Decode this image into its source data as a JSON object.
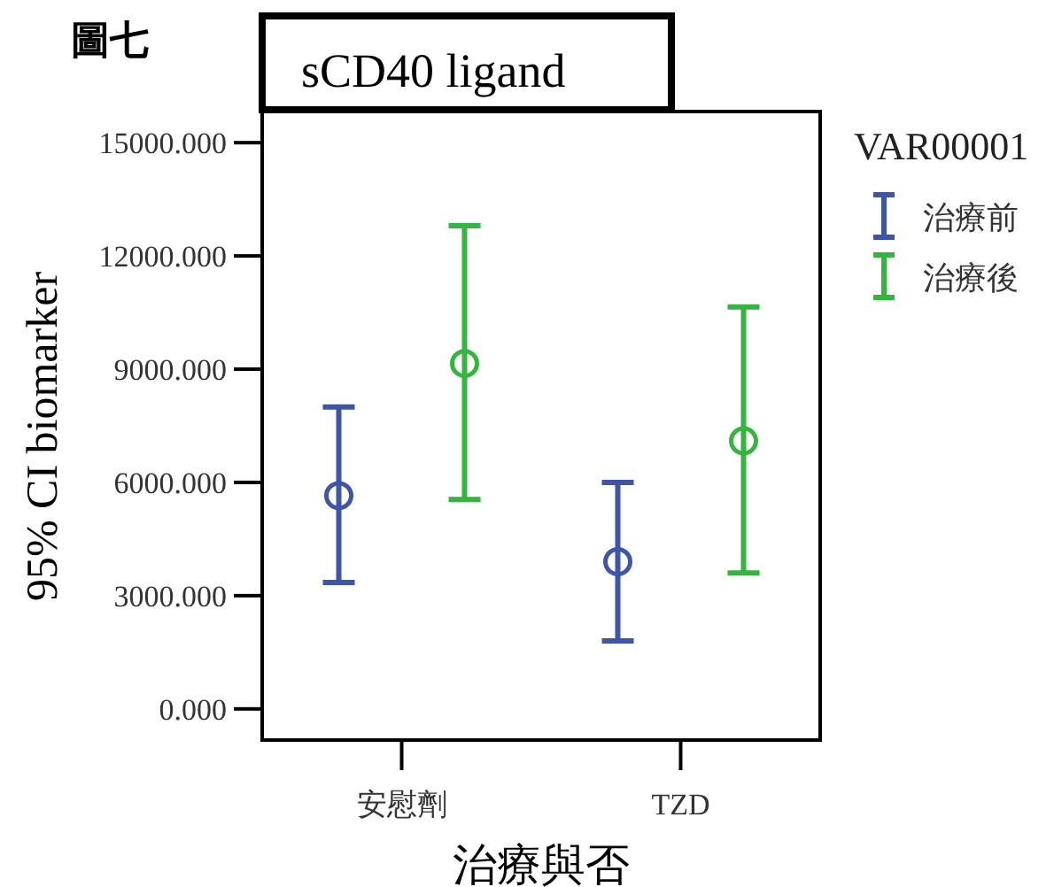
{
  "chart_data": {
    "type": "scatter",
    "title": "sCD40 ligand",
    "annotations": [
      "圖七"
    ],
    "xlabel": "治療與否",
    "ylabel": "95% CI biomarker",
    "legend_title": "VAR00001",
    "legend": "right",
    "marker": "circle",
    "categories": [
      "安慰劑",
      "TZD"
    ],
    "series": [
      {
        "name": "治療前",
        "color": "#3f55a8",
        "values": [
          5650,
          3900
        ],
        "errors": [
          [
            3350,
            8000
          ],
          [
            1800,
            6000
          ]
        ]
      },
      {
        "name": "治療後",
        "color": "#35b53f",
        "values": [
          9150,
          7100
        ],
        "errors": [
          [
            5550,
            12800
          ],
          [
            3600,
            10650
          ]
        ]
      }
    ],
    "ylim": [
      -825,
      15825
    ],
    "yticks": [
      {
        "value": 0,
        "label": "0.000"
      },
      {
        "value": 3000,
        "label": "3000.000"
      },
      {
        "value": 6000,
        "label": "6000.000"
      },
      {
        "value": 9000,
        "label": "9000.000"
      },
      {
        "value": 12000,
        "label": "12000.000"
      },
      {
        "value": 15000,
        "label": "15000.000"
      }
    ]
  }
}
